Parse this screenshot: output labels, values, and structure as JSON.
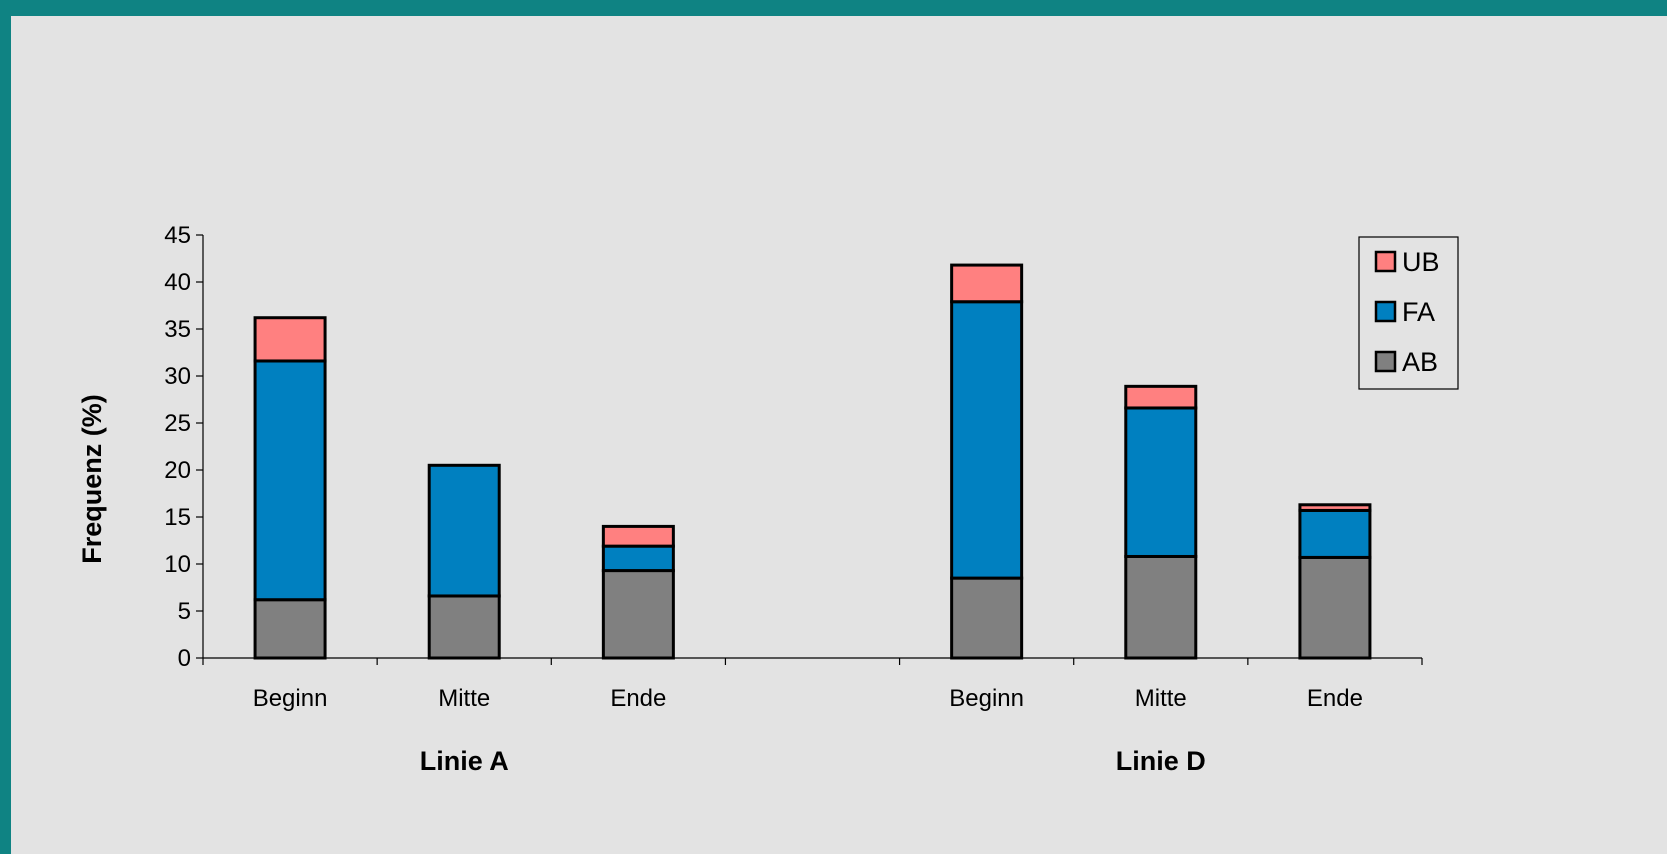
{
  "chart_data": {
    "type": "bar",
    "stacked": true,
    "ylabel": "Frequenz (%)",
    "ylim": [
      0,
      45
    ],
    "yticks": [
      0,
      5,
      10,
      15,
      20,
      25,
      30,
      35,
      40,
      45
    ],
    "grid": false,
    "legend_position": "top-right",
    "groups": [
      {
        "label": "Linie A",
        "categories": [
          "Beginn",
          "Mitte",
          "Ende"
        ],
        "series": [
          {
            "name": "AB",
            "values": [
              6.2,
              6.6,
              9.3
            ]
          },
          {
            "name": "FA",
            "values": [
              25.4,
              13.9,
              2.6
            ]
          },
          {
            "name": "UB",
            "values": [
              4.6,
              0,
              2.1
            ]
          }
        ]
      },
      {
        "label": "Linie D",
        "categories": [
          "Beginn",
          "Mitte",
          "Ende"
        ],
        "series": [
          {
            "name": "AB",
            "values": [
              8.5,
              10.8,
              10.7
            ]
          },
          {
            "name": "FA",
            "values": [
              29.4,
              15.8,
              5.0
            ]
          },
          {
            "name": "UB",
            "values": [
              3.9,
              2.3,
              0.6
            ]
          }
        ]
      }
    ],
    "series_colors": {
      "AB": "#808080",
      "FA": "#0080c0",
      "UB": "#ff8080"
    },
    "legend": [
      "UB",
      "FA",
      "AB"
    ]
  }
}
